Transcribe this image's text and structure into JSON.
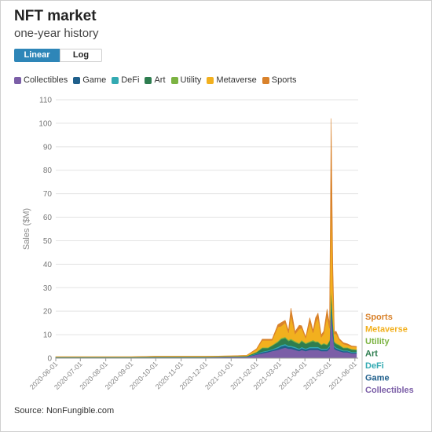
{
  "header": {
    "title": "NFT market",
    "subtitle": "one-year history"
  },
  "toggle": {
    "linear_label": "Linear",
    "log_label": "Log",
    "selected": "Linear"
  },
  "source": "Source: NonFungible.com",
  "colors": {
    "Collectibles": "#7b5ea7",
    "Game": "#1f5f8b",
    "DeFi": "#33aab2",
    "Art": "#2e7d4f",
    "Utility": "#7cb342",
    "Metaverse": "#f2b01e",
    "Sports": "#d9822b"
  },
  "chart_data": {
    "type": "area",
    "stacked": true,
    "ylabel": "Sales ($M)",
    "ylim": [
      0,
      110
    ],
    "yticks": [
      0,
      10,
      20,
      30,
      40,
      50,
      60,
      70,
      80,
      90,
      100,
      110
    ],
    "xlim": [
      "2020-06-01",
      "2021-06-05"
    ],
    "xticks": [
      "2020-06-01",
      "2020-07-01",
      "2020-08-01",
      "2020-09-01",
      "2020-10-01",
      "2020-11-01",
      "2020-12-01",
      "2021-01-01",
      "2021-02-01",
      "2021-03-01",
      "2021-04-01",
      "2021-05-01",
      "2021-06-01"
    ],
    "grid": "horizontal",
    "legend_position": "top",
    "x": [
      "2020-06-01",
      "2020-07-01",
      "2020-08-01",
      "2020-09-01",
      "2020-10-01",
      "2020-11-01",
      "2020-12-01",
      "2021-01-01",
      "2021-01-20",
      "2021-02-01",
      "2021-02-08",
      "2021-02-15",
      "2021-02-20",
      "2021-02-27",
      "2021-03-03",
      "2021-03-08",
      "2021-03-12",
      "2021-03-15",
      "2021-03-20",
      "2021-03-25",
      "2021-03-28",
      "2021-04-02",
      "2021-04-07",
      "2021-04-11",
      "2021-04-14",
      "2021-04-17",
      "2021-04-21",
      "2021-04-24",
      "2021-04-28",
      "2021-05-01",
      "2021-05-03",
      "2021-05-05",
      "2021-05-07",
      "2021-05-09",
      "2021-05-13",
      "2021-05-18",
      "2021-05-23",
      "2021-05-28",
      "2021-06-03"
    ],
    "series": [
      {
        "name": "Collectibles",
        "values": [
          0.2,
          0.2,
          0.2,
          0.2,
          0.3,
          0.3,
          0.3,
          0.5,
          0.5,
          1.5,
          2.0,
          2.5,
          3.0,
          3.5,
          4.0,
          4.5,
          4.0,
          4.0,
          3.5,
          3.0,
          3.5,
          3.0,
          3.5,
          3.5,
          3.5,
          3.5,
          3.0,
          3.0,
          3.0,
          4.0,
          20.0,
          10.0,
          4.0,
          3.5,
          3.0,
          2.5,
          2.5,
          2.0,
          2.0
        ]
      },
      {
        "name": "Game",
        "values": [
          0.1,
          0.1,
          0.1,
          0.1,
          0.1,
          0.1,
          0.1,
          0.1,
          0.1,
          0.3,
          0.5,
          0.5,
          0.5,
          0.8,
          1.0,
          1.0,
          0.8,
          0.8,
          0.8,
          0.7,
          0.8,
          0.7,
          0.8,
          0.8,
          0.8,
          0.8,
          0.7,
          0.7,
          0.7,
          0.8,
          3.0,
          2.0,
          0.8,
          0.7,
          0.6,
          0.5,
          0.5,
          0.4,
          0.4
        ]
      },
      {
        "name": "DeFi",
        "values": [
          0.1,
          0.1,
          0.1,
          0.1,
          0.1,
          0.1,
          0.1,
          0.1,
          0.1,
          0.2,
          0.3,
          0.3,
          0.3,
          0.5,
          0.6,
          0.6,
          0.5,
          0.5,
          0.5,
          0.4,
          0.5,
          0.4,
          0.5,
          0.5,
          0.5,
          0.5,
          0.4,
          0.4,
          0.4,
          0.5,
          2.0,
          1.0,
          0.5,
          0.4,
          0.4,
          0.3,
          0.3,
          0.3,
          0.3
        ]
      },
      {
        "name": "Art",
        "values": [
          0.1,
          0.1,
          0.1,
          0.1,
          0.1,
          0.1,
          0.1,
          0.1,
          0.2,
          0.5,
          1.5,
          1.0,
          1.5,
          2.0,
          2.5,
          2.5,
          2.0,
          2.5,
          2.0,
          2.0,
          2.5,
          2.0,
          2.0,
          2.5,
          2.0,
          2.0,
          1.5,
          2.0,
          1.5,
          2.0,
          5.0,
          3.0,
          1.5,
          1.5,
          1.5,
          1.0,
          1.0,
          1.0,
          0.8
        ]
      },
      {
        "name": "Utility",
        "values": [
          0.0,
          0.0,
          0.0,
          0.0,
          0.0,
          0.0,
          0.0,
          0.0,
          0.0,
          0.2,
          0.3,
          0.3,
          0.3,
          0.5,
          0.5,
          0.5,
          0.5,
          0.5,
          0.5,
          0.4,
          0.5,
          0.4,
          0.4,
          0.5,
          0.4,
          0.4,
          0.3,
          0.4,
          0.3,
          0.4,
          1.0,
          0.8,
          0.4,
          0.4,
          0.3,
          0.3,
          0.3,
          0.2,
          0.2
        ]
      },
      {
        "name": "Metaverse",
        "values": [
          0.1,
          0.1,
          0.1,
          0.1,
          0.2,
          0.2,
          0.2,
          0.2,
          0.3,
          1.0,
          3.0,
          3.0,
          2.0,
          6.0,
          5.0,
          6.0,
          3.0,
          10.0,
          3.0,
          6.0,
          5.0,
          2.0,
          8.0,
          3.0,
          8.0,
          10.0,
          3.0,
          4.0,
          12.0,
          5.0,
          40.0,
          15.0,
          3.0,
          4.0,
          2.0,
          1.5,
          1.0,
          1.0,
          1.0
        ]
      },
      {
        "name": "Sports",
        "values": [
          0.0,
          0.0,
          0.0,
          0.0,
          0.0,
          0.0,
          0.0,
          0.0,
          0.0,
          0.3,
          0.5,
          0.5,
          0.5,
          1.0,
          1.5,
          1.0,
          1.0,
          3.0,
          1.0,
          1.5,
          1.0,
          0.5,
          2.0,
          1.0,
          2.0,
          2.0,
          1.0,
          1.0,
          3.0,
          2.0,
          31.0,
          8.0,
          1.0,
          1.0,
          0.5,
          0.5,
          0.5,
          0.3,
          0.3
        ]
      }
    ]
  }
}
